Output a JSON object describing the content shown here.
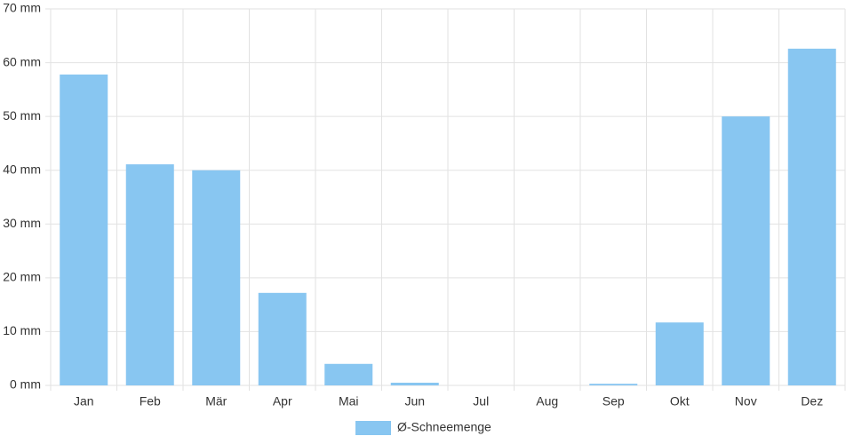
{
  "chart_data": {
    "type": "bar",
    "categories": [
      "Jan",
      "Feb",
      "Mär",
      "Apr",
      "Mai",
      "Jun",
      "Jul",
      "Aug",
      "Sep",
      "Okt",
      "Nov",
      "Dez"
    ],
    "series": [
      {
        "name": "Ø-Schneemenge",
        "color": "#88c6f1",
        "values": [
          57.8,
          41.1,
          40.0,
          17.2,
          4.0,
          0.5,
          0,
          0,
          0.3,
          11.7,
          50.0,
          62.6
        ]
      }
    ],
    "ylim": [
      0,
      70
    ],
    "yticks": [
      {
        "value": 0,
        "label": "0 mm"
      },
      {
        "value": 10,
        "label": "10 mm"
      },
      {
        "value": 20,
        "label": "20 mm"
      },
      {
        "value": 30,
        "label": "30 mm"
      },
      {
        "value": 40,
        "label": "40 mm"
      },
      {
        "value": 50,
        "label": "50 mm"
      },
      {
        "value": 60,
        "label": "60 mm"
      },
      {
        "value": 70,
        "label": "70 mm"
      }
    ],
    "grid": true,
    "legend": "bottom"
  }
}
